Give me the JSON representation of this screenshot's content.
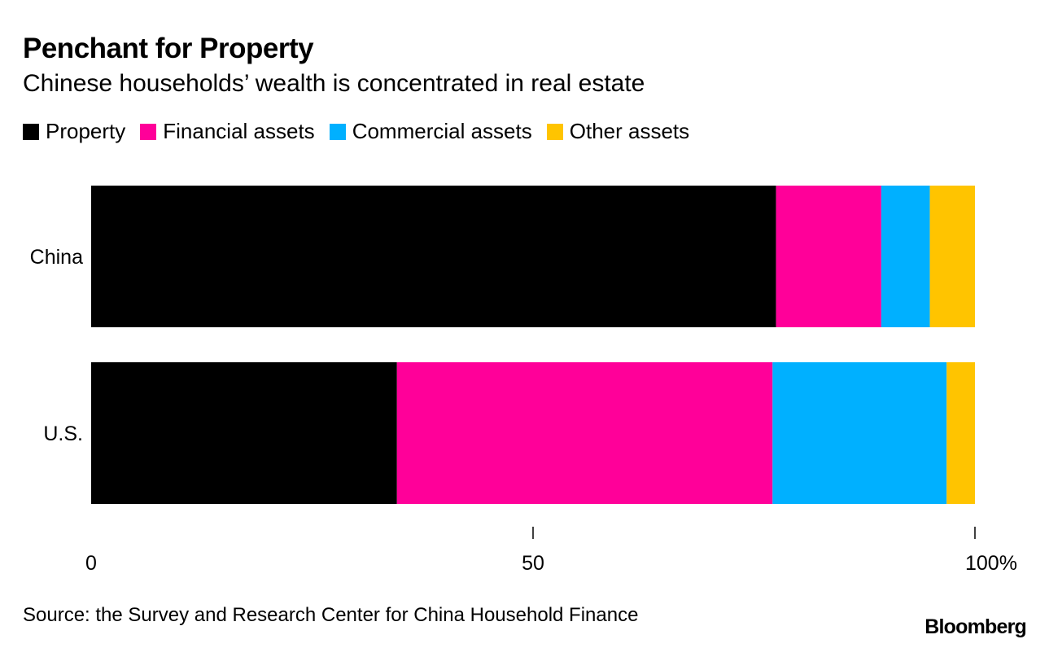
{
  "title": "Penchant for Property",
  "subtitle": "Chinese households’ wealth is concentrated in real estate",
  "legend": [
    {
      "label": "Property",
      "color": "#000000"
    },
    {
      "label": "Financial assets",
      "color": "#ff0099"
    },
    {
      "label": "Commercial assets",
      "color": "#00b0ff"
    },
    {
      "label": "Other assets",
      "color": "#ffc400"
    }
  ],
  "chart_data": {
    "type": "bar",
    "orientation": "horizontal",
    "stacked": true,
    "categories": [
      "China",
      "U.S."
    ],
    "series": [
      {
        "name": "Property",
        "color": "#000000",
        "values": [
          77.5,
          34.6
        ]
      },
      {
        "name": "Financial assets",
        "color": "#ff0099",
        "values": [
          11.9,
          42.5
        ]
      },
      {
        "name": "Commercial assets",
        "color": "#00b0ff",
        "values": [
          5.5,
          19.7
        ]
      },
      {
        "name": "Other assets",
        "color": "#ffc400",
        "values": [
          5.1,
          3.2
        ]
      }
    ],
    "xlim": [
      0,
      100
    ],
    "xticks": [
      0,
      50,
      100
    ],
    "xtick_labels": [
      "0",
      "50",
      "100%"
    ],
    "xlabel": "",
    "ylabel": ""
  },
  "source": "Source: the Survey and Research Center for China Household Finance",
  "brand": "Bloomberg"
}
